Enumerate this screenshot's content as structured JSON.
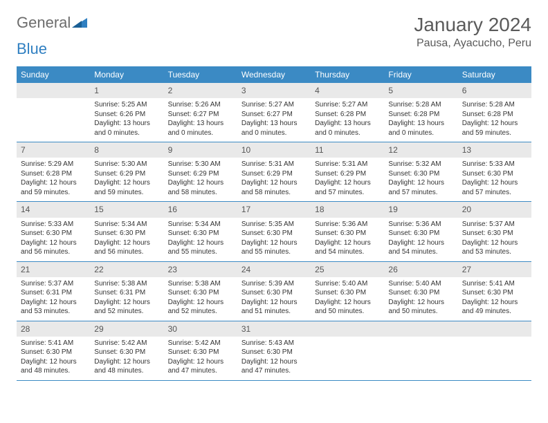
{
  "brand": {
    "word1": "General",
    "word2": "Blue"
  },
  "title": "January 2024",
  "location": "Pausa, Ayacucho, Peru",
  "colors": {
    "header_bg": "#3b8ac4",
    "header_text": "#ffffff",
    "daynum_bg": "#e9e9e9",
    "border_color": "#3b8ac4",
    "text_color": "#333333",
    "title_color": "#5a5a5a",
    "logo_gray": "#6c6c6c",
    "logo_blue": "#2f7fc1"
  },
  "typography": {
    "title_fontsize": 28,
    "location_fontsize": 16,
    "dayheader_fontsize": 12,
    "daynum_fontsize": 12,
    "body_fontsize": 10
  },
  "layout": {
    "columns": 7,
    "rows": 6,
    "start_offset": 1
  },
  "weekdays": [
    "Sunday",
    "Monday",
    "Tuesday",
    "Wednesday",
    "Thursday",
    "Friday",
    "Saturday"
  ],
  "days": [
    {
      "n": 1,
      "sunrise": "5:25 AM",
      "sunset": "6:26 PM",
      "daylight": "13 hours and 0 minutes."
    },
    {
      "n": 2,
      "sunrise": "5:26 AM",
      "sunset": "6:27 PM",
      "daylight": "13 hours and 0 minutes."
    },
    {
      "n": 3,
      "sunrise": "5:27 AM",
      "sunset": "6:27 PM",
      "daylight": "13 hours and 0 minutes."
    },
    {
      "n": 4,
      "sunrise": "5:27 AM",
      "sunset": "6:28 PM",
      "daylight": "13 hours and 0 minutes."
    },
    {
      "n": 5,
      "sunrise": "5:28 AM",
      "sunset": "6:28 PM",
      "daylight": "13 hours and 0 minutes."
    },
    {
      "n": 6,
      "sunrise": "5:28 AM",
      "sunset": "6:28 PM",
      "daylight": "12 hours and 59 minutes."
    },
    {
      "n": 7,
      "sunrise": "5:29 AM",
      "sunset": "6:28 PM",
      "daylight": "12 hours and 59 minutes."
    },
    {
      "n": 8,
      "sunrise": "5:30 AM",
      "sunset": "6:29 PM",
      "daylight": "12 hours and 59 minutes."
    },
    {
      "n": 9,
      "sunrise": "5:30 AM",
      "sunset": "6:29 PM",
      "daylight": "12 hours and 58 minutes."
    },
    {
      "n": 10,
      "sunrise": "5:31 AM",
      "sunset": "6:29 PM",
      "daylight": "12 hours and 58 minutes."
    },
    {
      "n": 11,
      "sunrise": "5:31 AM",
      "sunset": "6:29 PM",
      "daylight": "12 hours and 57 minutes."
    },
    {
      "n": 12,
      "sunrise": "5:32 AM",
      "sunset": "6:30 PM",
      "daylight": "12 hours and 57 minutes."
    },
    {
      "n": 13,
      "sunrise": "5:33 AM",
      "sunset": "6:30 PM",
      "daylight": "12 hours and 57 minutes."
    },
    {
      "n": 14,
      "sunrise": "5:33 AM",
      "sunset": "6:30 PM",
      "daylight": "12 hours and 56 minutes."
    },
    {
      "n": 15,
      "sunrise": "5:34 AM",
      "sunset": "6:30 PM",
      "daylight": "12 hours and 56 minutes."
    },
    {
      "n": 16,
      "sunrise": "5:34 AM",
      "sunset": "6:30 PM",
      "daylight": "12 hours and 55 minutes."
    },
    {
      "n": 17,
      "sunrise": "5:35 AM",
      "sunset": "6:30 PM",
      "daylight": "12 hours and 55 minutes."
    },
    {
      "n": 18,
      "sunrise": "5:36 AM",
      "sunset": "6:30 PM",
      "daylight": "12 hours and 54 minutes."
    },
    {
      "n": 19,
      "sunrise": "5:36 AM",
      "sunset": "6:30 PM",
      "daylight": "12 hours and 54 minutes."
    },
    {
      "n": 20,
      "sunrise": "5:37 AM",
      "sunset": "6:30 PM",
      "daylight": "12 hours and 53 minutes."
    },
    {
      "n": 21,
      "sunrise": "5:37 AM",
      "sunset": "6:31 PM",
      "daylight": "12 hours and 53 minutes."
    },
    {
      "n": 22,
      "sunrise": "5:38 AM",
      "sunset": "6:31 PM",
      "daylight": "12 hours and 52 minutes."
    },
    {
      "n": 23,
      "sunrise": "5:38 AM",
      "sunset": "6:30 PM",
      "daylight": "12 hours and 52 minutes."
    },
    {
      "n": 24,
      "sunrise": "5:39 AM",
      "sunset": "6:30 PM",
      "daylight": "12 hours and 51 minutes."
    },
    {
      "n": 25,
      "sunrise": "5:40 AM",
      "sunset": "6:30 PM",
      "daylight": "12 hours and 50 minutes."
    },
    {
      "n": 26,
      "sunrise": "5:40 AM",
      "sunset": "6:30 PM",
      "daylight": "12 hours and 50 minutes."
    },
    {
      "n": 27,
      "sunrise": "5:41 AM",
      "sunset": "6:30 PM",
      "daylight": "12 hours and 49 minutes."
    },
    {
      "n": 28,
      "sunrise": "5:41 AM",
      "sunset": "6:30 PM",
      "daylight": "12 hours and 48 minutes."
    },
    {
      "n": 29,
      "sunrise": "5:42 AM",
      "sunset": "6:30 PM",
      "daylight": "12 hours and 48 minutes."
    },
    {
      "n": 30,
      "sunrise": "5:42 AM",
      "sunset": "6:30 PM",
      "daylight": "12 hours and 47 minutes."
    },
    {
      "n": 31,
      "sunrise": "5:43 AM",
      "sunset": "6:30 PM",
      "daylight": "12 hours and 47 minutes."
    }
  ],
  "labels": {
    "sunrise": "Sunrise:",
    "sunset": "Sunset:",
    "daylight": "Daylight:"
  }
}
